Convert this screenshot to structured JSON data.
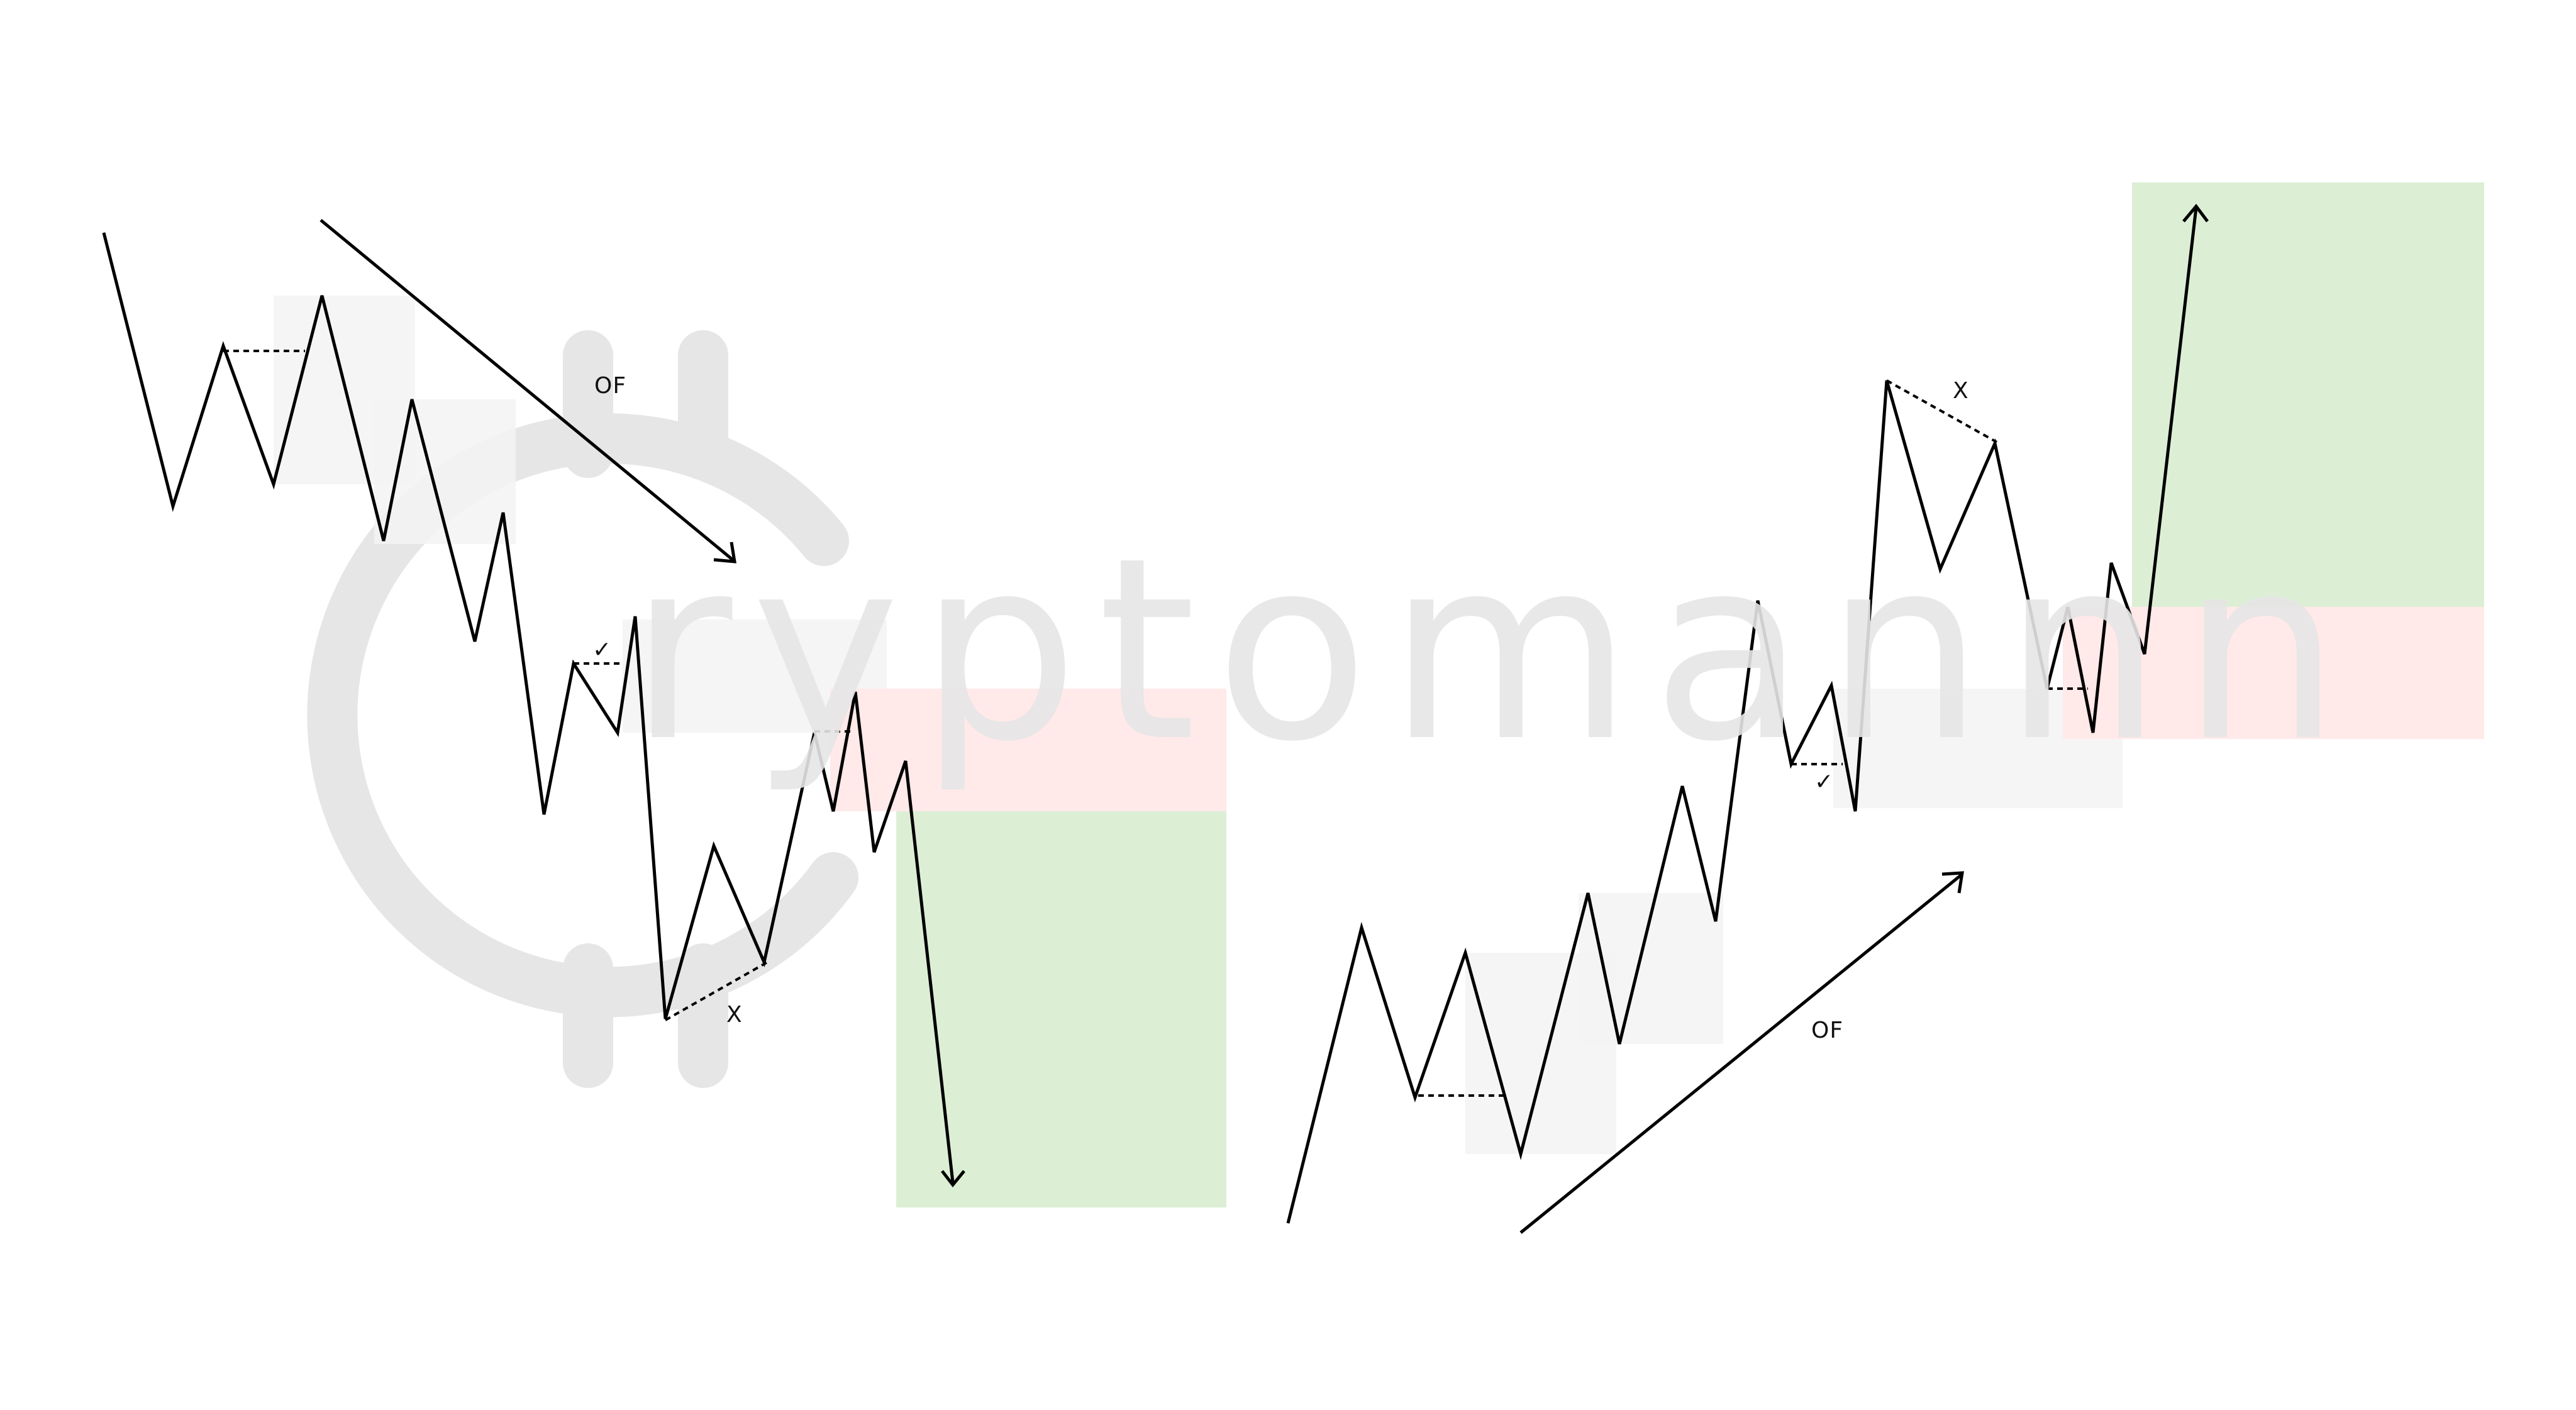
{
  "colors": {
    "background": "#ffffff",
    "price_line": "#000000",
    "target_zone": "#dcefd5",
    "stop_zone": "#ffe9e9",
    "order_block": "#f3f3f3",
    "watermark": "#e6e6e6"
  },
  "watermark": {
    "logo": "bitcoin-c-logo",
    "letters": [
      "r",
      "y",
      "p",
      "t",
      "o",
      "m",
      "a",
      "n",
      "n",
      "n"
    ]
  },
  "setups": [
    {
      "direction": "short",
      "flow_label": "OF",
      "check_label": "✓",
      "fail_label": "X",
      "arrow": "down"
    },
    {
      "direction": "long",
      "flow_label": "OF",
      "check_label": "✓",
      "fail_label": "X",
      "arrow": "up"
    }
  ]
}
